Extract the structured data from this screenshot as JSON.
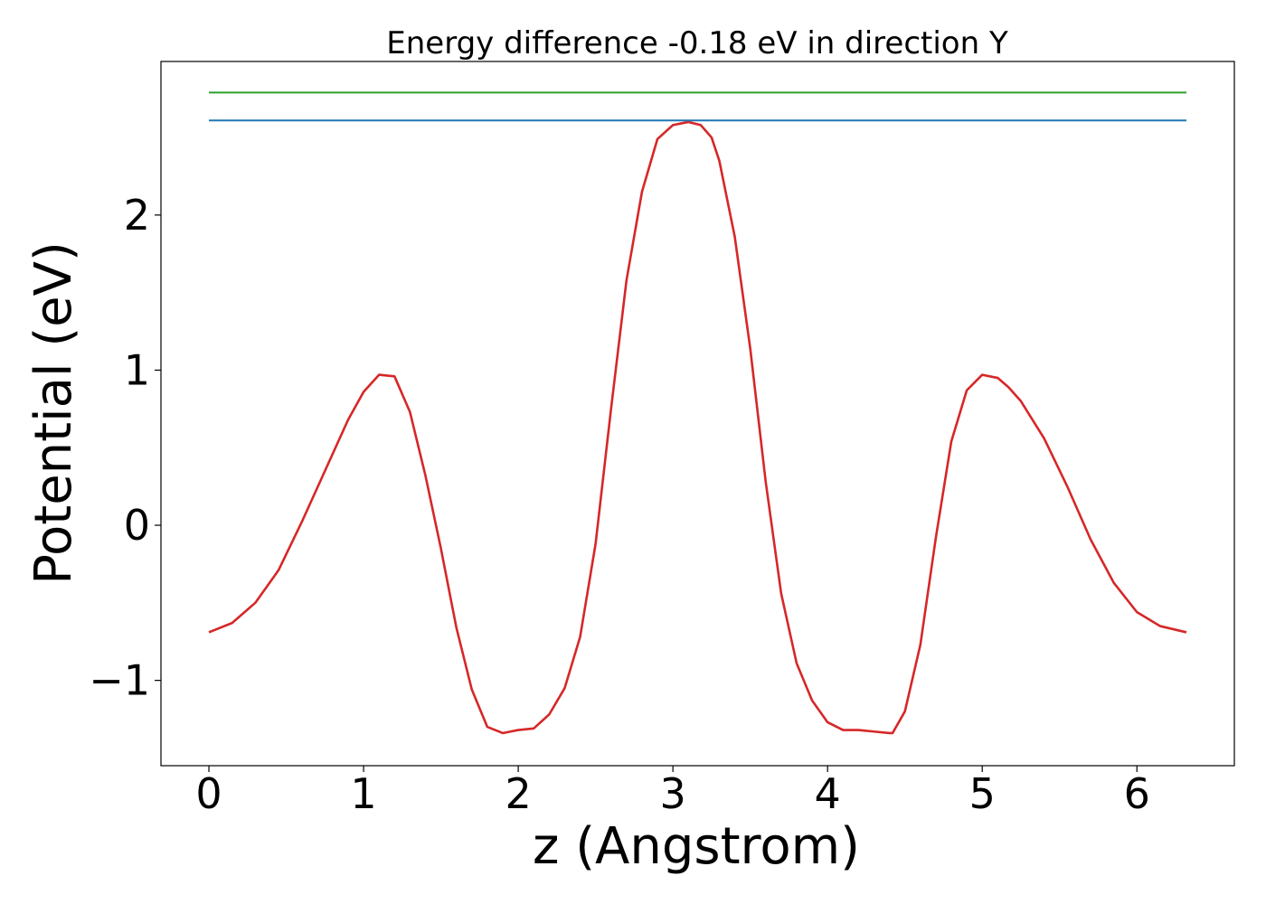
{
  "chart_data": {
    "type": "line",
    "title": "Energy difference -0.18 eV in direction Y",
    "xlabel": "z (Angstrom)",
    "ylabel": "Potential (eV)",
    "xlim": [
      -0.31,
      6.63
    ],
    "ylim": [
      -1.55,
      2.99
    ],
    "x_ticks": [
      0,
      1,
      2,
      3,
      4,
      5,
      6
    ],
    "x_tick_labels": [
      "0",
      "1",
      "2",
      "3",
      "4",
      "5",
      "6"
    ],
    "y_ticks": [
      -1,
      0,
      1,
      2
    ],
    "y_tick_labels": [
      "−1",
      "0",
      "1",
      "2"
    ],
    "grid": false,
    "series": [
      {
        "color": "#d62728",
        "x": [
          0,
          0.15,
          0.3,
          0.45,
          0.6,
          0.75,
          0.9,
          1.0,
          1.1,
          1.2,
          1.3,
          1.4,
          1.5,
          1.6,
          1.7,
          1.8,
          1.9,
          1.95,
          2.0,
          2.1,
          2.2,
          2.3,
          2.4,
          2.5,
          2.6,
          2.7,
          2.8,
          2.9,
          3.0,
          3.1,
          3.18,
          3.25,
          3.3,
          3.4,
          3.5,
          3.6,
          3.7,
          3.8,
          3.9,
          4.0,
          4.1,
          4.2,
          4.3,
          4.4,
          4.42,
          4.5,
          4.6,
          4.7,
          4.8,
          4.9,
          5.0,
          5.1,
          5.17,
          5.25,
          5.4,
          5.55,
          5.7,
          5.85,
          6.0,
          6.15,
          6.32
        ],
        "y": [
          -0.69,
          -0.63,
          -0.5,
          -0.29,
          0.02,
          0.35,
          0.68,
          0.86,
          0.97,
          0.96,
          0.73,
          0.32,
          -0.15,
          -0.66,
          -1.06,
          -1.3,
          -1.34,
          -1.33,
          -1.32,
          -1.31,
          -1.22,
          -1.05,
          -0.72,
          -0.12,
          0.75,
          1.58,
          2.15,
          2.49,
          2.58,
          2.6,
          2.58,
          2.5,
          2.35,
          1.86,
          1.14,
          0.28,
          -0.44,
          -0.89,
          -1.13,
          -1.27,
          -1.32,
          -1.32,
          -1.33,
          -1.34,
          -1.34,
          -1.2,
          -0.77,
          -0.08,
          0.54,
          0.87,
          0.97,
          0.95,
          0.89,
          0.8,
          0.56,
          0.25,
          -0.09,
          -0.37,
          -0.56,
          -0.65,
          -0.69
        ]
      },
      {
        "color": "#1f77b4",
        "x": [
          0,
          6.32
        ],
        "y": [
          2.61,
          2.61
        ]
      },
      {
        "color": "#2ca02c",
        "x": [
          0,
          6.32
        ],
        "y": [
          2.79,
          2.79
        ]
      }
    ]
  }
}
